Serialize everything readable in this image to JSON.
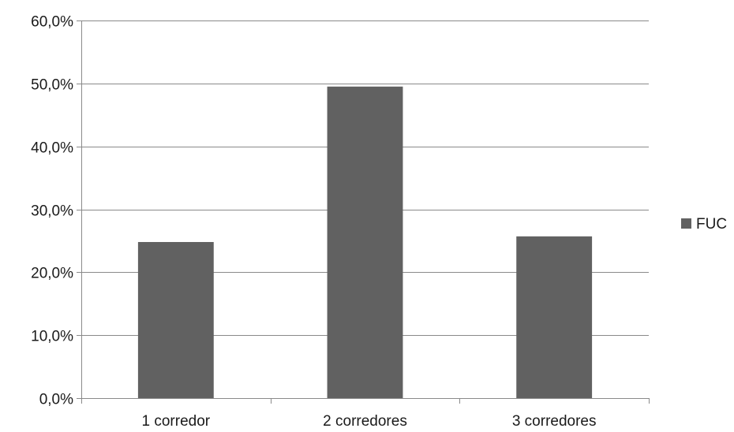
{
  "chart_data": {
    "type": "bar",
    "categories": [
      "1 corredor",
      "2 corredores",
      "3 corredores"
    ],
    "series": [
      {
        "name": "FUC",
        "values": [
          24.8,
          49.5,
          25.7
        ],
        "color": "#616161"
      }
    ],
    "ylim": [
      0,
      60
    ],
    "yticks": [
      0,
      10,
      20,
      30,
      40,
      50,
      60
    ],
    "ytick_labels": [
      "0,0%",
      "10,0%",
      "20,0%",
      "30,0%",
      "40,0%",
      "50,0%",
      "60,0%"
    ],
    "grid": true,
    "legend_position": "right",
    "title": "",
    "xlabel": "",
    "ylabel": ""
  }
}
